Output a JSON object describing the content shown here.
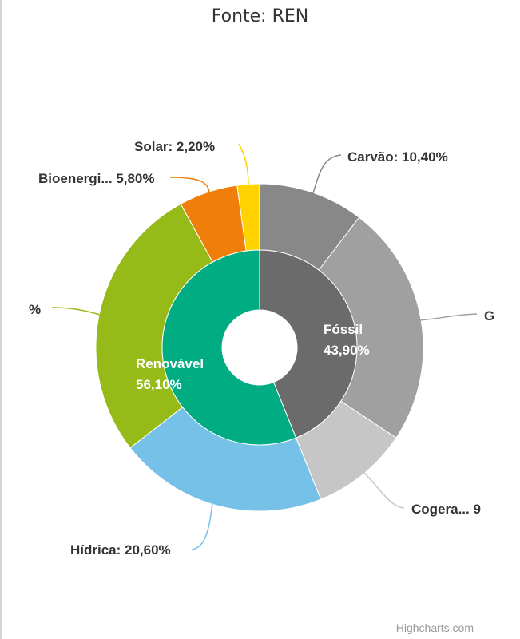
{
  "title": "Fonte: REN",
  "credits": "Highcharts.com",
  "chart_data": {
    "type": "pie",
    "subtype": "donut",
    "inner": [
      {
        "name": "Fóssil",
        "label": "Fóssil",
        "value_label": "43,90%",
        "value": 43.9,
        "color": "#6b6b6b"
      },
      {
        "name": "Renovável",
        "label": "Renovável",
        "value_label": "56,10%",
        "value": 56.1,
        "color": "#00ad82"
      }
    ],
    "outer": [
      {
        "label": "Carvão: 10,40%",
        "value": 10.4,
        "color": "#888888",
        "group": "Fóssil"
      },
      {
        "label": "G",
        "value": 23.9,
        "color": "#a0a0a0",
        "group": "Fóssil"
      },
      {
        "label": "Cogera... 9",
        "value": 9.6,
        "color": "#c6c6c6",
        "group": "Fóssil"
      },
      {
        "label": "Hídrica: 20,60%",
        "value": 20.6,
        "color": "#75c1e8",
        "group": "Renovável"
      },
      {
        "label": "%",
        "value": 27.5,
        "color": "#96bb18",
        "group": "Renovável"
      },
      {
        "label": "Bioenergi... 5,80%",
        "value": 5.8,
        "color": "#ef7f0a",
        "group": "Renovável"
      },
      {
        "label": "Solar: 2,20%",
        "value": 2.2,
        "color": "#ffd200",
        "group": "Renovável"
      }
    ]
  }
}
